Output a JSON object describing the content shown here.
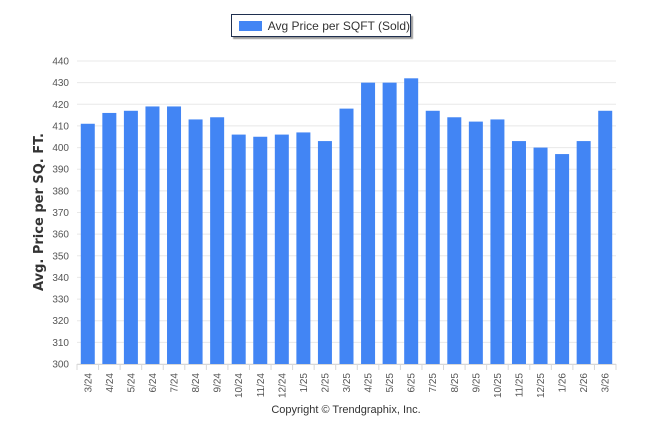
{
  "legend": {
    "label": "Avg Price per SQFT (Sold)",
    "color": "#4285f4"
  },
  "footer": {
    "copyright": "Copyright © Trendgraphix, Inc."
  },
  "chart_data": {
    "type": "bar",
    "title": "",
    "xlabel": "",
    "ylabel": "Avg. Price per SQ. FT.",
    "ylim": [
      300,
      440
    ],
    "yticks": [
      300,
      310,
      320,
      330,
      340,
      350,
      360,
      370,
      380,
      390,
      400,
      410,
      420,
      430,
      440
    ],
    "grid": true,
    "legend_position": "top-center",
    "categories": [
      "3/24",
      "4/24",
      "5/24",
      "6/24",
      "7/24",
      "8/24",
      "9/24",
      "10/24",
      "11/24",
      "12/24",
      "1/25",
      "2/25",
      "3/25",
      "4/25",
      "5/25",
      "6/25",
      "7/25",
      "8/25",
      "9/25",
      "10/25",
      "11/25",
      "12/25",
      "1/26",
      "2/26",
      "3/26"
    ],
    "series": [
      {
        "name": "Avg Price per SQFT (Sold)",
        "color": "#4285f4",
        "values": [
          411,
          416,
          417,
          419,
          419,
          413,
          414,
          406,
          405,
          406,
          407,
          403,
          418,
          430,
          430,
          432,
          417,
          414,
          412,
          413,
          403,
          400,
          397,
          403,
          417
        ]
      }
    ]
  }
}
